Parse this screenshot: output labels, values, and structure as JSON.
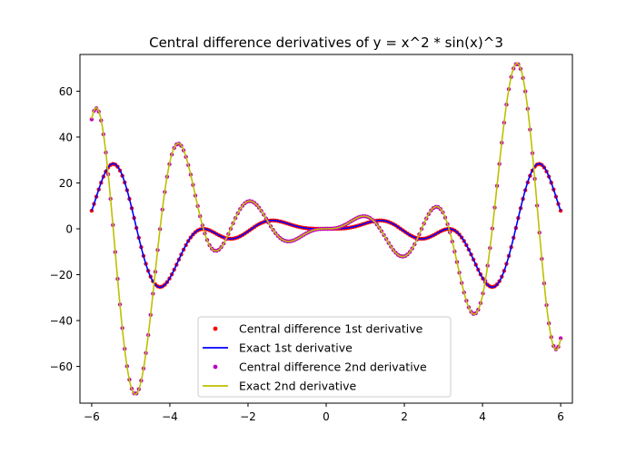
{
  "chart_data": {
    "type": "line",
    "title": "Central difference derivatives of y = x^2 * sin(x)^3",
    "xlabel": "",
    "ylabel": "",
    "xlim": [
      -6.3,
      6.3
    ],
    "ylim": [
      -76,
      76
    ],
    "x_ticks": [
      -6,
      -4,
      -2,
      0,
      2,
      4,
      6
    ],
    "x_tick_labels": [
      "−6",
      "−4",
      "−2",
      "0",
      "2",
      "4",
      "6"
    ],
    "y_ticks": [
      -60,
      -40,
      -20,
      0,
      20,
      40,
      60
    ],
    "y_tick_labels": [
      "−60",
      "−40",
      "−20",
      "0",
      "20",
      "40",
      "60"
    ],
    "function": "y = x^2 * sin(x)^3",
    "x_domain": [
      -6,
      6
    ],
    "marker_samples": 200,
    "grid": false,
    "legend_position": "lower center",
    "series": [
      {
        "name": "Central difference 1st derivative",
        "kind": "markers",
        "derivative": 1,
        "color": "#ff0000"
      },
      {
        "name": "Exact 1st derivative",
        "kind": "line",
        "derivative": 1,
        "color": "#0000ff"
      },
      {
        "name": "Central difference 2nd derivative",
        "kind": "markers",
        "derivative": 2,
        "color": "#bf00bf"
      },
      {
        "name": "Exact 2nd derivative",
        "kind": "line",
        "derivative": 2,
        "color": "#bfbf00"
      }
    ]
  }
}
